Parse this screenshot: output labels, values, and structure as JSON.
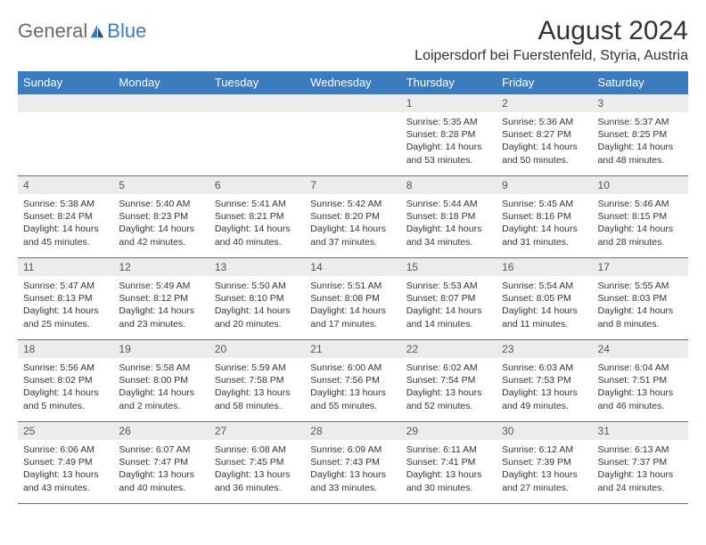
{
  "logo": {
    "part1": "General",
    "part2": "Blue"
  },
  "title": "August 2024",
  "location": "Loipersdorf bei Fuerstenfeld, Styria, Austria",
  "colors": {
    "header_bg": "#3b7bbf",
    "header_text": "#ffffff",
    "daynum_bg": "#ececec",
    "border": "#3b7bbf",
    "logo_gray": "#6a6a6a",
    "logo_blue": "#3b7bbf"
  },
  "daynames": [
    "Sunday",
    "Monday",
    "Tuesday",
    "Wednesday",
    "Thursday",
    "Friday",
    "Saturday"
  ],
  "weeks": [
    [
      null,
      null,
      null,
      null,
      {
        "d": "1",
        "sr": "5:35 AM",
        "ss": "8:28 PM",
        "dl": "14 hours and 53 minutes."
      },
      {
        "d": "2",
        "sr": "5:36 AM",
        "ss": "8:27 PM",
        "dl": "14 hours and 50 minutes."
      },
      {
        "d": "3",
        "sr": "5:37 AM",
        "ss": "8:25 PM",
        "dl": "14 hours and 48 minutes."
      }
    ],
    [
      {
        "d": "4",
        "sr": "5:38 AM",
        "ss": "8:24 PM",
        "dl": "14 hours and 45 minutes."
      },
      {
        "d": "5",
        "sr": "5:40 AM",
        "ss": "8:23 PM",
        "dl": "14 hours and 42 minutes."
      },
      {
        "d": "6",
        "sr": "5:41 AM",
        "ss": "8:21 PM",
        "dl": "14 hours and 40 minutes."
      },
      {
        "d": "7",
        "sr": "5:42 AM",
        "ss": "8:20 PM",
        "dl": "14 hours and 37 minutes."
      },
      {
        "d": "8",
        "sr": "5:44 AM",
        "ss": "8:18 PM",
        "dl": "14 hours and 34 minutes."
      },
      {
        "d": "9",
        "sr": "5:45 AM",
        "ss": "8:16 PM",
        "dl": "14 hours and 31 minutes."
      },
      {
        "d": "10",
        "sr": "5:46 AM",
        "ss": "8:15 PM",
        "dl": "14 hours and 28 minutes."
      }
    ],
    [
      {
        "d": "11",
        "sr": "5:47 AM",
        "ss": "8:13 PM",
        "dl": "14 hours and 25 minutes."
      },
      {
        "d": "12",
        "sr": "5:49 AM",
        "ss": "8:12 PM",
        "dl": "14 hours and 23 minutes."
      },
      {
        "d": "13",
        "sr": "5:50 AM",
        "ss": "8:10 PM",
        "dl": "14 hours and 20 minutes."
      },
      {
        "d": "14",
        "sr": "5:51 AM",
        "ss": "8:08 PM",
        "dl": "14 hours and 17 minutes."
      },
      {
        "d": "15",
        "sr": "5:53 AM",
        "ss": "8:07 PM",
        "dl": "14 hours and 14 minutes."
      },
      {
        "d": "16",
        "sr": "5:54 AM",
        "ss": "8:05 PM",
        "dl": "14 hours and 11 minutes."
      },
      {
        "d": "17",
        "sr": "5:55 AM",
        "ss": "8:03 PM",
        "dl": "14 hours and 8 minutes."
      }
    ],
    [
      {
        "d": "18",
        "sr": "5:56 AM",
        "ss": "8:02 PM",
        "dl": "14 hours and 5 minutes."
      },
      {
        "d": "19",
        "sr": "5:58 AM",
        "ss": "8:00 PM",
        "dl": "14 hours and 2 minutes."
      },
      {
        "d": "20",
        "sr": "5:59 AM",
        "ss": "7:58 PM",
        "dl": "13 hours and 58 minutes."
      },
      {
        "d": "21",
        "sr": "6:00 AM",
        "ss": "7:56 PM",
        "dl": "13 hours and 55 minutes."
      },
      {
        "d": "22",
        "sr": "6:02 AM",
        "ss": "7:54 PM",
        "dl": "13 hours and 52 minutes."
      },
      {
        "d": "23",
        "sr": "6:03 AM",
        "ss": "7:53 PM",
        "dl": "13 hours and 49 minutes."
      },
      {
        "d": "24",
        "sr": "6:04 AM",
        "ss": "7:51 PM",
        "dl": "13 hours and 46 minutes."
      }
    ],
    [
      {
        "d": "25",
        "sr": "6:06 AM",
        "ss": "7:49 PM",
        "dl": "13 hours and 43 minutes."
      },
      {
        "d": "26",
        "sr": "6:07 AM",
        "ss": "7:47 PM",
        "dl": "13 hours and 40 minutes."
      },
      {
        "d": "27",
        "sr": "6:08 AM",
        "ss": "7:45 PM",
        "dl": "13 hours and 36 minutes."
      },
      {
        "d": "28",
        "sr": "6:09 AM",
        "ss": "7:43 PM",
        "dl": "13 hours and 33 minutes."
      },
      {
        "d": "29",
        "sr": "6:11 AM",
        "ss": "7:41 PM",
        "dl": "13 hours and 30 minutes."
      },
      {
        "d": "30",
        "sr": "6:12 AM",
        "ss": "7:39 PM",
        "dl": "13 hours and 27 minutes."
      },
      {
        "d": "31",
        "sr": "6:13 AM",
        "ss": "7:37 PM",
        "dl": "13 hours and 24 minutes."
      }
    ]
  ]
}
